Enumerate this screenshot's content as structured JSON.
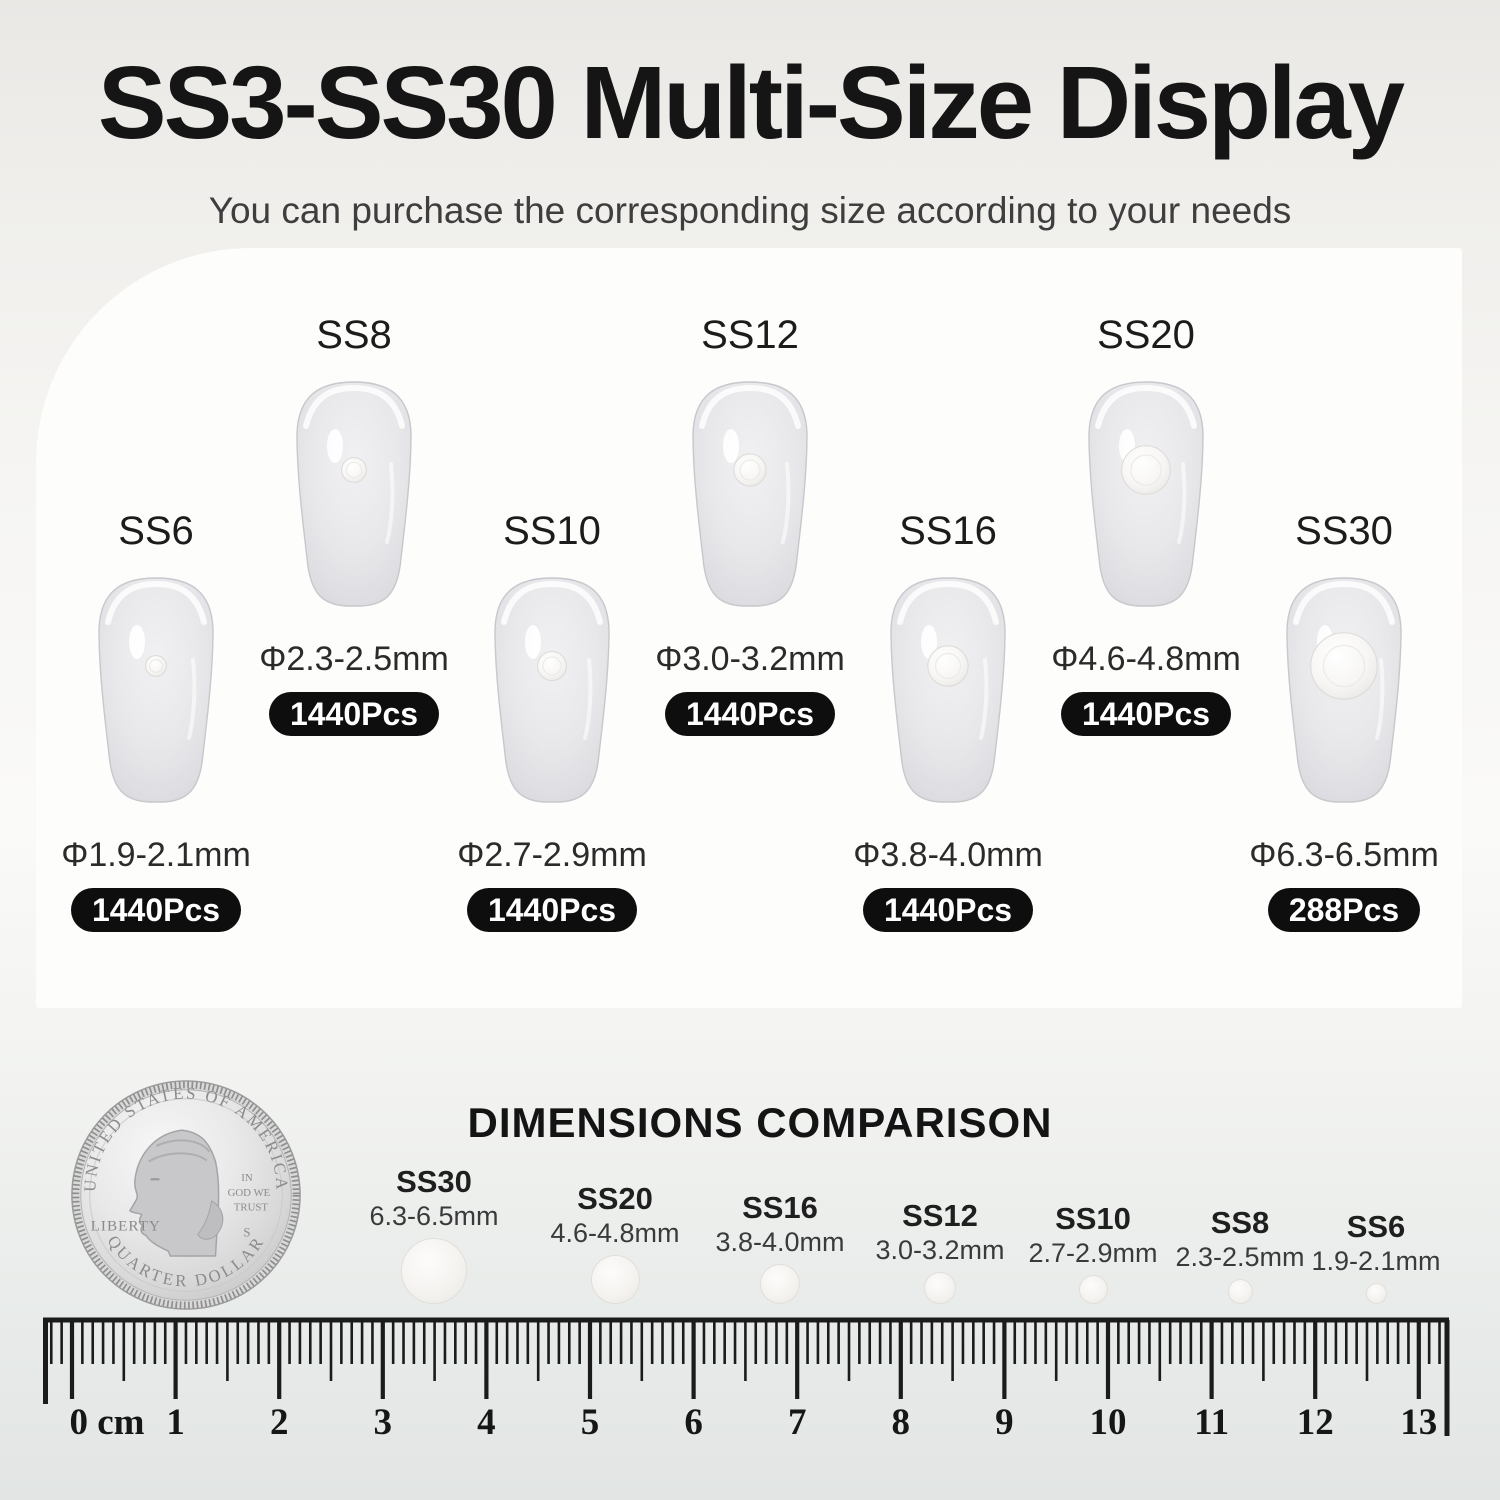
{
  "header": {
    "title": "SS3-SS30 Multi-Size Display",
    "subtitle": "You can purchase the corresponding size according to your needs"
  },
  "sizes": [
    {
      "name": "SS6",
      "diameter": "Φ1.9-2.1mm",
      "count": "1440Pcs",
      "mm_min": 1.9,
      "mm_max": 2.1
    },
    {
      "name": "SS8",
      "diameter": "Φ2.3-2.5mm",
      "count": "1440Pcs",
      "mm_min": 2.3,
      "mm_max": 2.5
    },
    {
      "name": "SS10",
      "diameter": "Φ2.7-2.9mm",
      "count": "1440Pcs",
      "mm_min": 2.7,
      "mm_max": 2.9
    },
    {
      "name": "SS12",
      "diameter": "Φ3.0-3.2mm",
      "count": "1440Pcs",
      "mm_min": 3.0,
      "mm_max": 3.2
    },
    {
      "name": "SS16",
      "diameter": "Φ3.8-4.0mm",
      "count": "1440Pcs",
      "mm_min": 3.8,
      "mm_max": 4.0
    },
    {
      "name": "SS20",
      "diameter": "Φ4.6-4.8mm",
      "count": "1440Pcs",
      "mm_min": 4.6,
      "mm_max": 4.8
    },
    {
      "name": "SS30",
      "diameter": "Φ6.3-6.5mm",
      "count": "288Pcs",
      "mm_min": 6.3,
      "mm_max": 6.5
    }
  ],
  "comparison": {
    "heading": "DIMENSIONS COMPARISON",
    "items": [
      {
        "name": "SS30",
        "size": "6.3-6.5mm",
        "mm_min": 6.3,
        "mm_max": 6.5
      },
      {
        "name": "SS20",
        "size": "4.6-4.8mm",
        "mm_min": 4.6,
        "mm_max": 4.8
      },
      {
        "name": "SS16",
        "size": "3.8-4.0mm",
        "mm_min": 3.8,
        "mm_max": 4.0
      },
      {
        "name": "SS12",
        "size": "3.0-3.2mm",
        "mm_min": 3.0,
        "mm_max": 3.2
      },
      {
        "name": "SS10",
        "size": "2.7-2.9mm",
        "mm_min": 2.7,
        "mm_max": 2.9
      },
      {
        "name": "SS8",
        "size": "2.3-2.5mm",
        "mm_min": 2.3,
        "mm_max": 2.5
      },
      {
        "name": "SS6",
        "size": "1.9-2.1mm",
        "mm_min": 1.9,
        "mm_max": 2.1
      }
    ]
  },
  "coin": {
    "top_text": "UNITED STATES OF AMERICA",
    "left_text": "LIBERTY",
    "motto_line1": "IN",
    "motto_line2": "GOD WE",
    "motto_line3": "TRUST",
    "mint_mark": "S",
    "bottom_text": "QUARTER DOLLAR"
  },
  "ruler": {
    "zero_label": "0 cm",
    "cm_max": 13,
    "numbers": [
      "1",
      "2",
      "3",
      "4",
      "5",
      "6",
      "7",
      "8",
      "9",
      "10",
      "11",
      "12",
      "13"
    ]
  },
  "colors": {
    "badge_bg": "#0e0e0e",
    "badge_text": "#ffffff",
    "title_text": "#151515",
    "card_bg": "#fdfdfc"
  }
}
